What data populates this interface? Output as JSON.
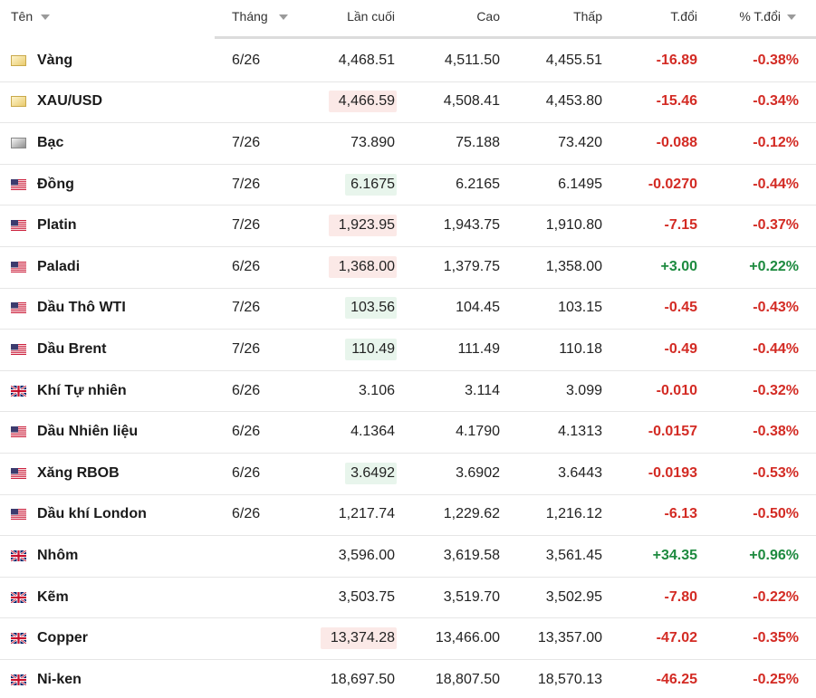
{
  "table": {
    "headers": [
      "Tên",
      "Tháng",
      "Lần cuối",
      "Cao",
      "Thấp",
      "T.đổi",
      "% T.đổi"
    ],
    "rows": [
      [
        "Vàng",
        "6/26",
        "4,468.51",
        "4,511.50",
        "4,455.51",
        "-16.89",
        "-0.38%"
      ],
      [
        "XAU/USD",
        null,
        "4,466.59",
        "4,508.41",
        "4,453.80",
        "-15.46",
        "-0.34%"
      ],
      [
        "Bạc",
        "7/26",
        "73.890",
        "75.188",
        "73.420",
        "-0.088",
        "-0.12%"
      ],
      [
        "Đồng",
        "7/26",
        "6.1675",
        "6.2165",
        "6.1495",
        "-0.0270",
        "-0.44%"
      ],
      [
        "Platin",
        "7/26",
        "1,923.95",
        "1,943.75",
        "1,910.80",
        "-7.15",
        "-0.37%"
      ],
      [
        "Paladi",
        "6/26",
        "1,368.00",
        "1,379.75",
        "1,358.00",
        "+3.00",
        "+0.22%"
      ],
      [
        "Dầu Thô WTI",
        "7/26",
        "103.56",
        "104.45",
        "103.15",
        "-0.45",
        "-0.43%"
      ],
      [
        "Dầu Brent",
        "7/26",
        "110.49",
        "111.49",
        "110.18",
        "-0.49",
        "-0.44%"
      ],
      [
        "Khí Tự nhiên",
        "6/26",
        "3.106",
        "3.114",
        "3.099",
        "-0.010",
        "-0.32%"
      ],
      [
        "Dầu Nhiên liệu",
        "6/26",
        "4.1364",
        "4.1790",
        "4.1313",
        "-0.0157",
        "-0.38%"
      ],
      [
        "Xăng RBOB",
        "6/26",
        "3.6492",
        "3.6902",
        "3.6443",
        "-0.0193",
        "-0.53%"
      ],
      [
        "Dầu khí London",
        "6/26",
        "1,217.74",
        "1,229.62",
        "1,216.12",
        "-6.13",
        "-0.50%"
      ],
      [
        "Nhôm",
        null,
        "3,596.00",
        "3,619.58",
        "3,561.45",
        "+34.35",
        "+0.96%"
      ],
      [
        "Kẽm",
        null,
        "3,503.75",
        "3,519.70",
        "3,502.95",
        "-7.80",
        "-0.22%"
      ],
      [
        "Copper",
        null,
        "13,374.28",
        "13,466.00",
        "13,357.00",
        "-47.02",
        "-0.35%"
      ],
      [
        "Ni-ken",
        null,
        "18,697.50",
        "18,807.50",
        "18,570.13",
        "-46.25",
        "-0.25%"
      ]
    ]
  }
}
